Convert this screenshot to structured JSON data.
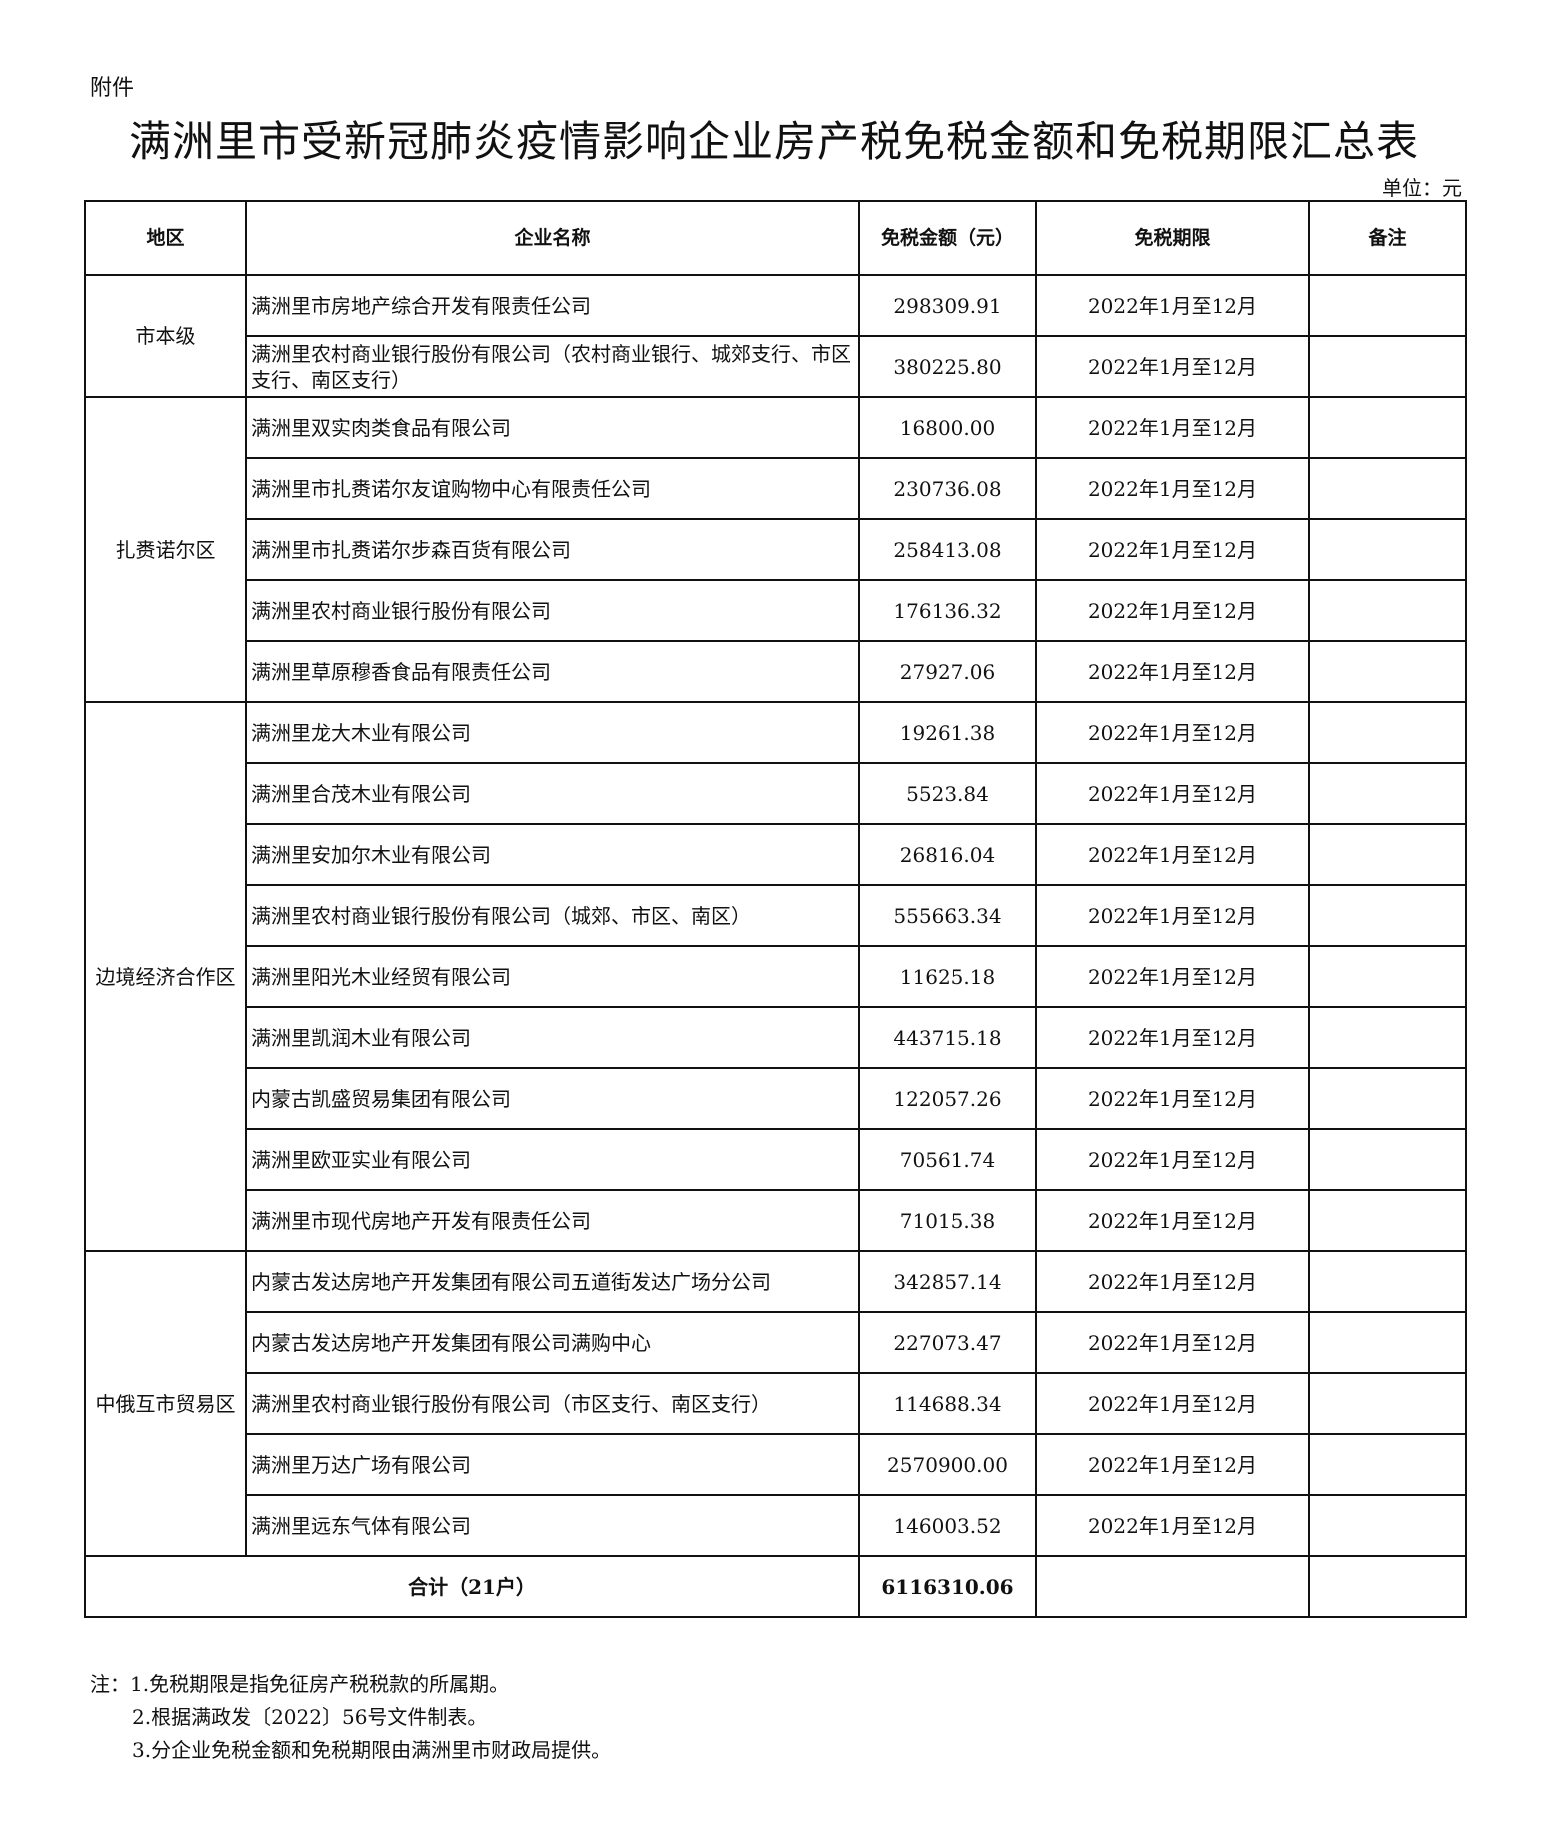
{
  "attachment_label": "附件",
  "title": "满洲里市受新冠肺炎疫情影响企业房产税免税金额和免税期限汇总表",
  "unit": "单位：元",
  "headers": [
    "地区",
    "企业名称",
    "免税金额（元）",
    "免税期限",
    "备注"
  ],
  "groups": [
    {
      "region": "市本级",
      "rows": [
        {
          "name": "满洲里市房地产综合开发有限责任公司",
          "amount": "298309.91",
          "period": "2022年1月至12月",
          "remark": ""
        },
        {
          "name": "满洲里农村商业银行股份有限公司（农村商业银行、城郊支行、市区支行、南区支行）",
          "amount": "380225.80",
          "period": "2022年1月至12月",
          "remark": ""
        }
      ]
    },
    {
      "region": "扎赉诺尔区",
      "rows": [
        {
          "name": "满洲里双实肉类食品有限公司",
          "amount": "16800.00",
          "period": "2022年1月至12月",
          "remark": ""
        },
        {
          "name": "满洲里市扎赉诺尔友谊购物中心有限责任公司",
          "amount": "230736.08",
          "period": "2022年1月至12月",
          "remark": ""
        },
        {
          "name": "满洲里市扎赉诺尔步森百货有限公司",
          "amount": "258413.08",
          "period": "2022年1月至12月",
          "remark": ""
        },
        {
          "name": "满洲里农村商业银行股份有限公司",
          "amount": "176136.32",
          "period": "2022年1月至12月",
          "remark": ""
        },
        {
          "name": "满洲里草原穆香食品有限责任公司",
          "amount": "27927.06",
          "period": "2022年1月至12月",
          "remark": ""
        }
      ]
    },
    {
      "region": "边境经济合作区",
      "rows": [
        {
          "name": "满洲里龙大木业有限公司",
          "amount": "19261.38",
          "period": "2022年1月至12月",
          "remark": ""
        },
        {
          "name": "满洲里合茂木业有限公司",
          "amount": "5523.84",
          "period": "2022年1月至12月",
          "remark": ""
        },
        {
          "name": "满洲里安加尔木业有限公司",
          "amount": "26816.04",
          "period": "2022年1月至12月",
          "remark": ""
        },
        {
          "name": "满洲里农村商业银行股份有限公司（城郊、市区、南区）",
          "amount": "555663.34",
          "period": "2022年1月至12月",
          "remark": ""
        },
        {
          "name": "满洲里阳光木业经贸有限公司",
          "amount": "11625.18",
          "period": "2022年1月至12月",
          "remark": ""
        },
        {
          "name": "满洲里凯润木业有限公司",
          "amount": "443715.18",
          "period": "2022年1月至12月",
          "remark": ""
        },
        {
          "name": "内蒙古凯盛贸易集团有限公司",
          "amount": "122057.26",
          "period": "2022年1月至12月",
          "remark": ""
        },
        {
          "name": "满洲里欧亚实业有限公司",
          "amount": "70561.74",
          "period": "2022年1月至12月",
          "remark": ""
        },
        {
          "name": "满洲里市现代房地产开发有限责任公司",
          "amount": "71015.38",
          "period": "2022年1月至12月",
          "remark": ""
        }
      ]
    },
    {
      "region": "中俄互市贸易区",
      "rows": [
        {
          "name": "内蒙古发达房地产开发集团有限公司五道街发达广场分公司",
          "amount": "342857.14",
          "period": "2022年1月至12月",
          "remark": ""
        },
        {
          "name": "内蒙古发达房地产开发集团有限公司满购中心",
          "amount": "227073.47",
          "period": "2022年1月至12月",
          "remark": ""
        },
        {
          "name": "满洲里农村商业银行股份有限公司（市区支行、南区支行）",
          "amount": "114688.34",
          "period": "2022年1月至12月",
          "remark": ""
        },
        {
          "name": "满洲里万达广场有限公司",
          "amount": "2570900.00",
          "period": "2022年1月至12月",
          "remark": ""
        },
        {
          "name": "满洲里远东气体有限公司",
          "amount": "146003.52",
          "period": "2022年1月至12月",
          "remark": ""
        }
      ]
    }
  ],
  "total": {
    "label": "合计（21户）",
    "amount": "6116310.06",
    "period": "",
    "remark": ""
  },
  "notes": [
    "注：1.免税期限是指免征房产税税款的所属期。",
    "2.根据满政发〔2022〕56号文件制表。",
    "3.分企业免税金额和免税期限由满洲里市财政局提供。"
  ]
}
